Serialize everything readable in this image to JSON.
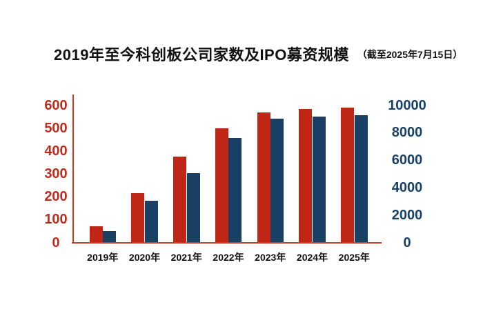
{
  "header": {
    "title": "2019年至今科创板公司家数及IPO募资规模",
    "subtitle": "（截至2025年7月15日）"
  },
  "colors": {
    "background": "#ffffff",
    "bar_companies": "#c02616",
    "bar_ipo": "#194064",
    "axis_line": "#cf3b24",
    "left_axis_labels": "#bf2b1d",
    "right_axis_labels": "#17406b",
    "x_axis_labels": "#111111",
    "title_text": "#111111"
  },
  "chart_data": {
    "type": "bar",
    "title": "2019年至今科创板公司家数及IPO募资规模",
    "subtitle": "（截至2025年7月15日）",
    "categories": [
      "2019年",
      "2020年",
      "2021年",
      "2022年",
      "2023年",
      "2024年",
      "2025年"
    ],
    "series": [
      {
        "name": "科创板公司家数",
        "axis": "left",
        "color": "#c02616",
        "values": [
          70,
          215,
          377,
          500,
          569,
          583,
          589
        ]
      },
      {
        "name": "IPO募资规模",
        "axis": "right",
        "color": "#194064",
        "values": [
          824,
          3050,
          5080,
          7600,
          9040,
          9190,
          9260
        ]
      }
    ],
    "left_axis": {
      "min": 0,
      "max": 600,
      "ticks": [
        0,
        100,
        200,
        300,
        400,
        500,
        600
      ]
    },
    "right_axis": {
      "min": 0,
      "max": 10000,
      "ticks": [
        0,
        2000,
        4000,
        6000,
        8000,
        10000
      ]
    },
    "grid": false,
    "legend": "none"
  }
}
